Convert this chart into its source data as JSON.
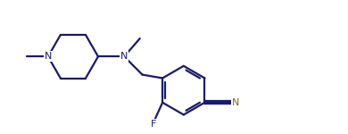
{
  "bond_color": "#1a1a6e",
  "cn_color": "#8B6914",
  "bg_color": "#ffffff",
  "figsize": [
    3.9,
    1.5
  ],
  "dpi": 100,
  "line_width": 1.6,
  "font_size": 8.0,
  "xlim": [
    0,
    10
  ],
  "ylim": [
    0,
    3.5
  ]
}
